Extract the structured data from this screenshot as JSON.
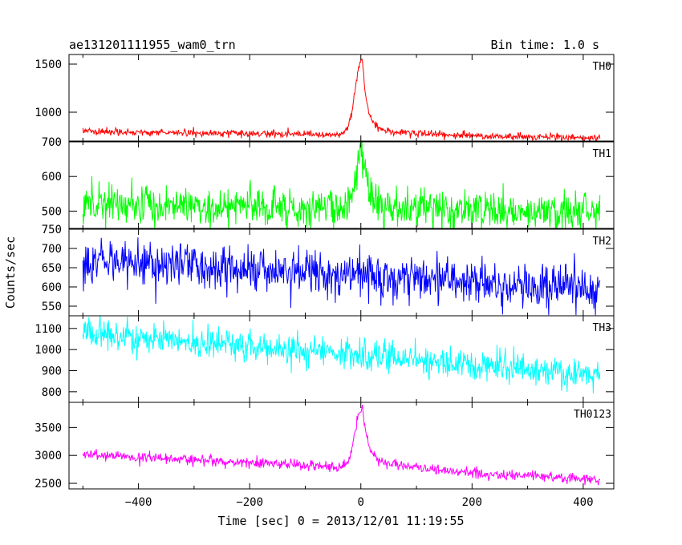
{
  "header": {
    "title": "ae131201111955_wam0_trn",
    "bin_time": "Bin time: 1.0 s"
  },
  "chart_data": {
    "type": "line",
    "title": "ae131201111955_wam0_trn",
    "subtitle": "Bin time: 1.0 s",
    "xlabel": "Time [sec] 0 = 2013/12/01 11:19:55",
    "ylabel": "Counts/sec",
    "xlim": [
      -525,
      455
    ],
    "x_ticks": [
      -400,
      -200,
      0,
      200,
      400
    ],
    "x_tick_labels": [
      "−400",
      "−200",
      "0",
      "200",
      "400"
    ],
    "data_range": [
      -500,
      430
    ],
    "grid": false,
    "panels": [
      {
        "name": "TH0",
        "color": "#ff0000",
        "ylim": [
          700,
          1600
        ],
        "y_ticks": [
          1000,
          1500
        ],
        "y_tick_labels": [
          "1000",
          "1500"
        ],
        "baseline_start": 800,
        "baseline_end": 730,
        "noise": 18,
        "burst": {
          "peak_time": 2,
          "peak_value": 1550,
          "rise_sec": 12,
          "decay_sec": 8,
          "tail_value": 80,
          "tail_sec": 90
        }
      },
      {
        "name": "TH1",
        "color": "#00ff00",
        "ylim": [
          450,
          700
        ],
        "y_ticks": [
          500,
          600,
          700
        ],
        "y_tick_labels": [
          "500",
          "600",
          "700"
        ],
        "baseline_start": 520,
        "baseline_end": 495,
        "noise": 28,
        "burst": {
          "peak_time": 2,
          "peak_value": 680,
          "rise_sec": 10,
          "decay_sec": 8,
          "tail_value": 25,
          "tail_sec": 60
        }
      },
      {
        "name": "TH2",
        "color": "#0000ff",
        "ylim": [
          525,
          750
        ],
        "y_ticks": [
          550,
          600,
          650,
          700,
          750
        ],
        "y_tick_labels": [
          "550",
          "600",
          "650",
          "700",
          "750"
        ],
        "baseline_start": 675,
        "baseline_end": 590,
        "noise": 28,
        "burst": null
      },
      {
        "name": "TH3",
        "color": "#00ffff",
        "ylim": [
          750,
          1160
        ],
        "y_ticks": [
          800,
          900,
          1000,
          1100
        ],
        "y_tick_labels": [
          "800",
          "900",
          "1000",
          "1100"
        ],
        "baseline_start": 1080,
        "baseline_end": 880,
        "noise": 38,
        "burst": null
      },
      {
        "name": "TH0123",
        "color": "#ff00ff",
        "ylim": [
          2400,
          3950
        ],
        "y_ticks": [
          2500,
          3000,
          3500
        ],
        "y_tick_labels": [
          "2500",
          "3000",
          "3500"
        ],
        "baseline_start": 3020,
        "baseline_end": 2560,
        "noise": 45,
        "burst": {
          "peak_time": 2,
          "peak_value": 3850,
          "rise_sec": 12,
          "decay_sec": 8,
          "tail_value": 200,
          "tail_sec": 80
        }
      }
    ]
  }
}
